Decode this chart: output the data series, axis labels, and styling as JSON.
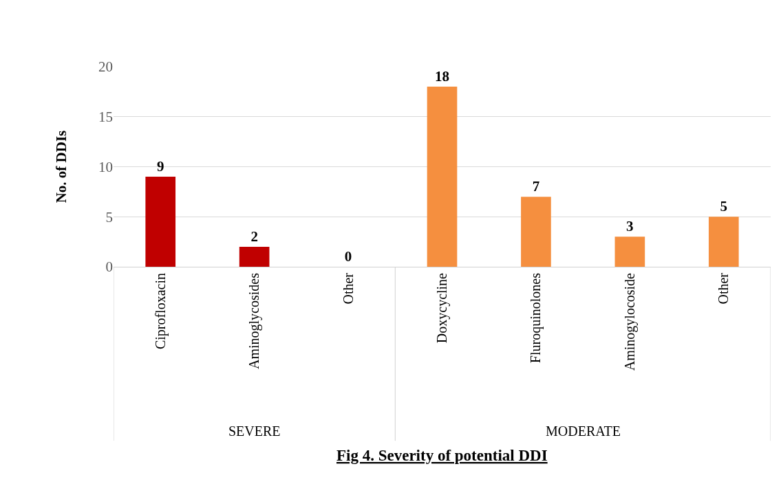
{
  "chart_data": {
    "type": "bar",
    "title": "Fig 4. Severity of potential DDI",
    "ylabel": "No. of DDIs",
    "categories": [
      "Ciprofloxacin",
      "Aminoglycosides",
      "Other",
      "Doxycycline",
      "Fluroquinolones",
      "Aminogylocoside",
      "Other"
    ],
    "values": [
      9,
      2,
      0,
      18,
      7,
      3,
      5
    ],
    "colors": [
      "#c00000",
      "#c00000",
      "#c00000",
      "#f58f3f",
      "#f58f3f",
      "#f58f3f",
      "#f58f3f"
    ],
    "annotations": [
      "SEVERE",
      "MODERATE"
    ],
    "ylim": [
      0,
      20
    ],
    "yticks": [
      0,
      5,
      10,
      15,
      20
    ],
    "grid": "y",
    "data_labels": true
  }
}
